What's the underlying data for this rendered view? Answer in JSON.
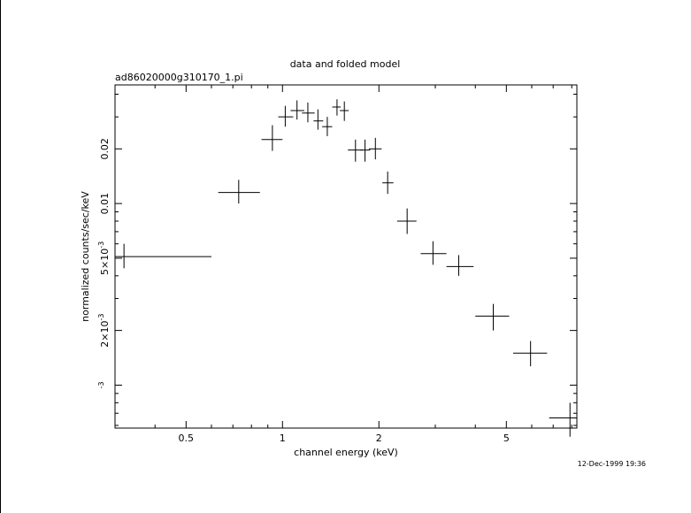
{
  "chart_data": {
    "type": "scatter",
    "title": "data and folded model",
    "subtitle": "ad86020000g310170_1.pi",
    "xlabel": "channel energy (keV)",
    "ylabel": "normalized counts/sec/keV",
    "x_scale": "log",
    "y_scale": "log",
    "xlim": [
      0.3,
      8.3
    ],
    "ylim": [
      0.00058,
      0.045
    ],
    "x_ticks": [
      {
        "value": 0.5,
        "label": "0.5"
      },
      {
        "value": 1,
        "label": "1"
      },
      {
        "value": 2,
        "label": "2"
      },
      {
        "value": 5,
        "label": "5"
      }
    ],
    "y_ticks": [
      {
        "value": 0.001,
        "mantissa": "",
        "exp": "-3",
        "label": "10-3"
      },
      {
        "value": 0.002,
        "mantissa": "2×10",
        "exp": "-3",
        "label": "2×10-3"
      },
      {
        "value": 0.005,
        "mantissa": "5×10",
        "exp": "-3",
        "label": "5×10-3"
      },
      {
        "value": 0.01,
        "mantissa": "0.01",
        "exp": "",
        "label": "0.01"
      },
      {
        "value": 0.02,
        "mantissa": "0.02",
        "exp": "",
        "label": "0.02"
      }
    ],
    "timestamp": "12-Dec-1999 19:36",
    "series": [
      {
        "points": [
          {
            "x": 0.32,
            "xlo": 0.3,
            "xhi": 0.6,
            "y": 0.0051,
            "ylo": 0.0044,
            "yhi": 0.006
          },
          {
            "x": 0.73,
            "xlo": 0.63,
            "xhi": 0.85,
            "y": 0.0115,
            "ylo": 0.01,
            "yhi": 0.0135
          },
          {
            "x": 0.93,
            "xlo": 0.86,
            "xhi": 1.0,
            "y": 0.0225,
            "ylo": 0.0195,
            "yhi": 0.027
          },
          {
            "x": 1.02,
            "xlo": 0.97,
            "xhi": 1.08,
            "y": 0.03,
            "ylo": 0.0265,
            "yhi": 0.0345
          },
          {
            "x": 1.11,
            "xlo": 1.06,
            "xhi": 1.17,
            "y": 0.0325,
            "ylo": 0.029,
            "yhi": 0.037
          },
          {
            "x": 1.2,
            "xlo": 1.15,
            "xhi": 1.26,
            "y": 0.0315,
            "ylo": 0.028,
            "yhi": 0.036
          },
          {
            "x": 1.29,
            "xlo": 1.25,
            "xhi": 1.34,
            "y": 0.0285,
            "ylo": 0.0255,
            "yhi": 0.033
          },
          {
            "x": 1.38,
            "xlo": 1.33,
            "xhi": 1.43,
            "y": 0.0265,
            "ylo": 0.0235,
            "yhi": 0.03
          },
          {
            "x": 1.48,
            "xlo": 1.43,
            "xhi": 1.52,
            "y": 0.034,
            "ylo": 0.0305,
            "yhi": 0.0375
          },
          {
            "x": 1.56,
            "xlo": 1.51,
            "xhi": 1.61,
            "y": 0.0325,
            "ylo": 0.0285,
            "yhi": 0.0365
          },
          {
            "x": 1.69,
            "xlo": 1.6,
            "xhi": 1.78,
            "y": 0.0197,
            "ylo": 0.017,
            "yhi": 0.0225
          },
          {
            "x": 1.81,
            "xlo": 1.75,
            "xhi": 1.88,
            "y": 0.0197,
            "ylo": 0.017,
            "yhi": 0.0225
          },
          {
            "x": 1.95,
            "xlo": 1.86,
            "xhi": 2.04,
            "y": 0.02,
            "ylo": 0.0175,
            "yhi": 0.023
          },
          {
            "x": 2.13,
            "xlo": 2.05,
            "xhi": 2.22,
            "y": 0.013,
            "ylo": 0.0113,
            "yhi": 0.015
          },
          {
            "x": 2.45,
            "xlo": 2.28,
            "xhi": 2.62,
            "y": 0.008,
            "ylo": 0.0068,
            "yhi": 0.0094
          },
          {
            "x": 2.95,
            "xlo": 2.7,
            "xhi": 3.25,
            "y": 0.0053,
            "ylo": 0.0046,
            "yhi": 0.0062
          },
          {
            "x": 3.55,
            "xlo": 3.25,
            "xhi": 3.95,
            "y": 0.0045,
            "ylo": 0.004,
            "yhi": 0.0052
          },
          {
            "x": 4.55,
            "xlo": 4.0,
            "xhi": 5.1,
            "y": 0.0024,
            "ylo": 0.002,
            "yhi": 0.0028
          },
          {
            "x": 5.95,
            "xlo": 5.25,
            "xhi": 6.7,
            "y": 0.0015,
            "ylo": 0.00127,
            "yhi": 0.00175
          },
          {
            "x": 7.9,
            "xlo": 6.8,
            "xhi": 8.3,
            "y": 0.00066,
            "ylo": 0.00052,
            "yhi": 0.0008
          }
        ]
      }
    ]
  }
}
